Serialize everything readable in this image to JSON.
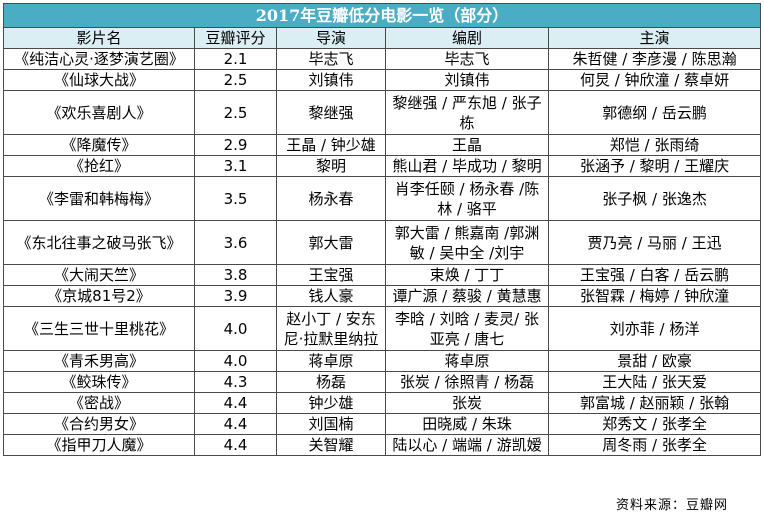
{
  "table": {
    "title": "2017年豆瓣低分电影一览（部分）",
    "headers": [
      "影片名",
      "豆瓣评分",
      "导演",
      "编剧",
      "主演"
    ],
    "rows": [
      {
        "film": "《纯洁心灵·逐梦演艺圈》",
        "score": "2.1",
        "director": "毕志飞",
        "writer": "毕志飞",
        "cast": "朱哲健 / 李彦漫 / 陈思瀚"
      },
      {
        "film": "《仙球大战》",
        "score": "2.5",
        "director": "刘镇伟",
        "writer": "刘镇伟",
        "cast": "何炅 / 钟欣潼 / 蔡卓妍"
      },
      {
        "film": "《欢乐喜剧人》",
        "score": "2.5",
        "director": "黎继强",
        "writer": "黎继强 / 严东旭 / 张子栋",
        "cast": "郭德纲 / 岳云鹏"
      },
      {
        "film": "《降魔传》",
        "score": "2.9",
        "director": "王晶 / 钟少雄",
        "writer": "王晶",
        "cast": "郑恺 / 张雨绮"
      },
      {
        "film": "《抢红》",
        "score": "3.1",
        "director": "黎明",
        "writer": "熊山君 / 毕成功 / 黎明",
        "cast": "张涵予 / 黎明 / 王耀庆"
      },
      {
        "film": "《李雷和韩梅梅》",
        "score": "3.5",
        "director": "杨永春",
        "writer": "肖李任颐 / 杨永春 /陈林 / 骆平",
        "cast": "张子枫 / 张逸杰"
      },
      {
        "film": "《东北往事之破马张飞》",
        "score": "3.6",
        "director": "郭大雷",
        "writer": "郭大雷 / 熊嘉南 /郭渊敏 / 吴中全 /刘宇",
        "cast": "贾乃亮 / 马丽 / 王迅"
      },
      {
        "film": "《大闹天竺》",
        "score": "3.8",
        "director": "王宝强",
        "writer": "束焕 / 丁丁",
        "cast": "王宝强 / 白客 / 岳云鹏"
      },
      {
        "film": "《京城81号2》",
        "score": "3.9",
        "director": "钱人豪",
        "writer": "谭广源 / 蔡骏 / 黄慧惠",
        "cast": "张智霖 / 梅婷 / 钟欣潼"
      },
      {
        "film": "《三生三世十里桃花》",
        "score": "4.0",
        "director": "赵小丁 / 安东尼·拉默里纳拉",
        "writer": "李晗 / 刘晗 / 麦灵/ 张亚亮 / 唐七",
        "cast": "刘亦菲 / 杨洋"
      },
      {
        "film": "《青禾男高》",
        "score": "4.0",
        "director": "蒋卓原",
        "writer": "蒋卓原",
        "cast": "景甜 / 欧豪"
      },
      {
        "film": "《鲛珠传》",
        "score": "4.3",
        "director": "杨磊",
        "writer": "张炭 / 徐照青 / 杨磊",
        "cast": "王大陆 / 张天爱"
      },
      {
        "film": "《密战》",
        "score": "4.4",
        "director": "钟少雄",
        "writer": "张炭",
        "cast": "郭富城 / 赵丽颖 / 张翰"
      },
      {
        "film": "《合约男女》",
        "score": "4.4",
        "director": "刘国楠",
        "writer": "田晓威 / 朱珠",
        "cast": "郑秀文 / 张孝全"
      },
      {
        "film": "《指甲刀人魔》",
        "score": "4.4",
        "director": "关智耀",
        "writer": "陆以心 / 端端 / 游凯嫒",
        "cast": "周冬雨 / 张孝全"
      }
    ]
  },
  "source": "资料来源：豆瓣网",
  "colors": {
    "title_bg": "#4bacc6",
    "header_bg": "#daeef3",
    "border": "#4a4a4a"
  }
}
